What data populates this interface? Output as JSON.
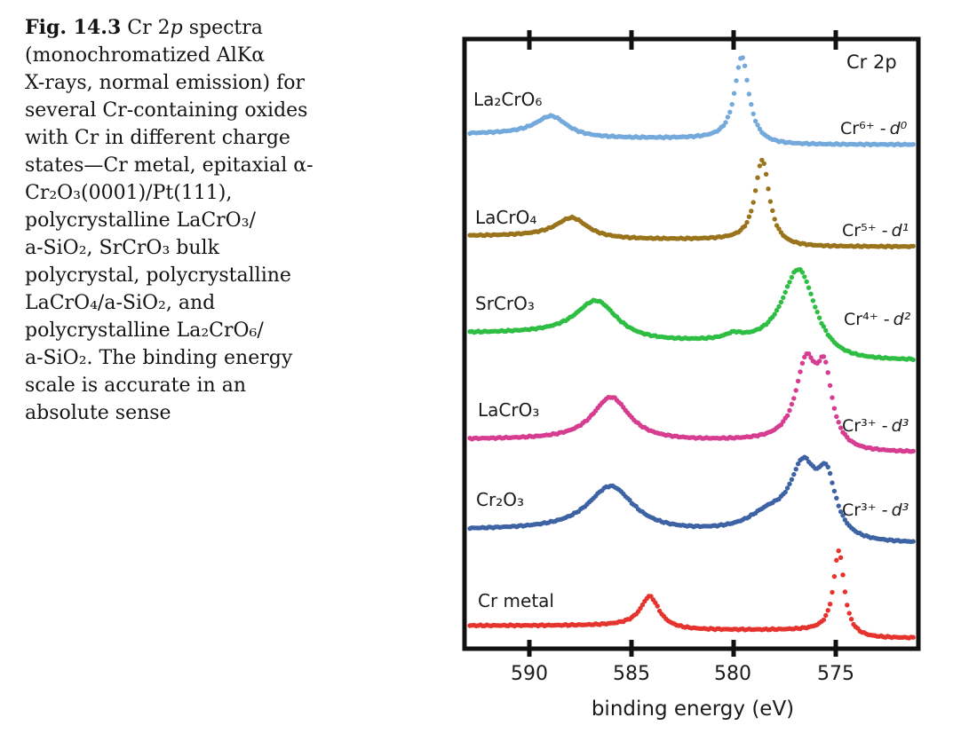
{
  "figure_caption": {
    "lines": [
      [
        {
          "t": "Fig. 14.3",
          "b": true
        },
        {
          "t": "  Cr 2"
        },
        {
          "t": "p",
          "i": true
        },
        {
          "t": " spectra"
        }
      ],
      [
        {
          "t": "(monochromatized AlKα"
        }
      ],
      [
        {
          "t": "X-rays, normal emission) for"
        }
      ],
      [
        {
          "t": "several Cr-containing oxides"
        }
      ],
      [
        {
          "t": "with Cr in different charge"
        }
      ],
      [
        {
          "t": "states—Cr metal, epitaxial α-"
        }
      ],
      [
        {
          "t": "Cr₂O₃(0001)/Pt(111),"
        }
      ],
      [
        {
          "t": "polycrystalline LaCrO₃/"
        }
      ],
      [
        {
          "t": "a-SiO₂, SrCrO₃ bulk"
        }
      ],
      [
        {
          "t": "polycrystal, polycrystalline"
        }
      ],
      [
        {
          "t": "LaCrO₄/a-SiO₂, and"
        }
      ],
      [
        {
          "t": "polycrystalline La₂CrO₆/"
        }
      ],
      [
        {
          "t": "a-SiO₂. The binding energy"
        }
      ],
      [
        {
          "t": "scale is accurate in an"
        }
      ],
      [
        {
          "t": "absolute sense"
        }
      ]
    ]
  },
  "chart_data": {
    "type": "line",
    "title": "Cr 2p",
    "xlabel": "binding energy (eV)",
    "x_axis": {
      "ticks": [
        590,
        585,
        580,
        575
      ],
      "tick_labels": [
        "590",
        "585",
        "580",
        "575"
      ],
      "unit": "eV",
      "range_ev": [
        593.2,
        570.9
      ],
      "direction": "binding energy decreases to the right"
    },
    "y_axis": {
      "note": "intensity, arbitrary units, curves vertically offset; no y label shown"
    },
    "style": {
      "dotted_curves": true,
      "frame_color": "#111111"
    },
    "series": [
      {
        "name": "La2CrO6",
        "label": "La₂CrO₆",
        "charge_label": "Cr⁶⁺ -",
        "d_label": "d⁰",
        "color": "#74A9DB",
        "peaks_ev": {
          "cr2p12": 588.9,
          "cr2p32": 579.6
        },
        "render": {
          "baseline_y": 163,
          "peaks": [
            {
              "c": 588.9,
              "a": 22,
              "w": 0.95,
              "m": 1
            },
            {
              "c": 579.6,
              "a": 94,
              "w": 0.45,
              "m": 1.15
            }
          ],
          "steps": [
            {
              "c": 588.6,
              "s": 5,
              "w": 0.5
            },
            {
              "c": 579.2,
              "s": 7,
              "w": 0.45
            }
          ]
        }
      },
      {
        "name": "LaCrO4",
        "label": "LaCrO₄",
        "charge_label": "Cr⁵⁺ -",
        "d_label": "d¹",
        "color": "#9A741C",
        "peaks_ev": {
          "cr2p12": 587.9,
          "cr2p32": 578.6
        },
        "render": {
          "baseline_y": 278,
          "peaks": [
            {
              "c": 587.9,
              "a": 22,
              "w": 0.95,
              "m": 1
            },
            {
              "c": 578.6,
              "a": 92,
              "w": 0.45,
              "m": 1.15
            }
          ],
          "steps": [
            {
              "c": 587.6,
              "s": 4,
              "w": 0.5
            },
            {
              "c": 578.2,
              "s": 8,
              "w": 0.45
            }
          ]
        }
      },
      {
        "name": "SrCrO3",
        "label": "SrCrO₃",
        "charge_label": "Cr⁴⁺ -",
        "d_label": "d²",
        "color": "#2EBE44",
        "peaks_ev": {
          "cr2p12": 586.7,
          "cr2p32": 576.8
        },
        "render": {
          "baseline_y": 406,
          "peaks": [
            {
              "c": 586.7,
              "a": 40,
              "w": 1.35,
              "m": 1.2
            },
            {
              "c": 580.0,
              "a": 6,
              "w": 0.5,
              "m": 1
            },
            {
              "c": 576.8,
              "a": 85,
              "w": 1.1,
              "m": 1.3
            }
          ],
          "steps": [
            {
              "c": 586.4,
              "s": 10,
              "w": 0.8
            },
            {
              "c": 576.0,
              "s": 21,
              "w": 0.55
            }
          ]
        }
      },
      {
        "name": "LaCrO3",
        "label": "LaCrO₃",
        "charge_label": "Cr³⁺ -",
        "d_label": "d³",
        "color": "#D63C90",
        "peaks_ev": {
          "cr2p12": 586.0,
          "cr2p32": 576.4,
          "cr2p32_shoulder": 575.6
        },
        "render": {
          "baseline_y": 510,
          "peaks": [
            {
              "c": 586.0,
              "a": 48,
              "w": 1.15,
              "m": 1.1
            },
            {
              "c": 576.45,
              "a": 86,
              "w": 0.65,
              "m": 1.1
            },
            {
              "c": 575.55,
              "a": 70,
              "w": 0.45,
              "m": 1.1
            }
          ],
          "steps": [
            {
              "c": 585.7,
              "s": 2,
              "w": 0.8
            },
            {
              "c": 575.1,
              "s": 13,
              "w": 0.4
            }
          ]
        }
      },
      {
        "name": "Cr2O3",
        "label": "Cr₂O₃",
        "charge_label": "Cr³⁺ -",
        "d_label": "d³",
        "color": "#3E63A5",
        "peaks_ev": {
          "cr2p12": 586.0,
          "cr2p32": 576.6,
          "cr2p32_shoulder": 575.5
        },
        "render": {
          "baseline_y": 613,
          "peaks": [
            {
              "c": 586.0,
              "a": 50,
              "w": 1.4,
              "m": 1.05
            },
            {
              "c": 578.3,
              "a": 18,
              "w": 1.2,
              "m": 1
            },
            {
              "c": 576.6,
              "a": 70,
              "w": 0.8,
              "m": 1.05
            },
            {
              "c": 575.45,
              "a": 55,
              "w": 0.55,
              "m": 1.1
            }
          ],
          "steps": [
            {
              "c": 585.7,
              "s": 4,
              "w": 0.8
            },
            {
              "c": 574.9,
              "s": 12,
              "w": 0.4
            }
          ]
        }
      },
      {
        "name": "Cr metal",
        "label": "Cr metal",
        "charge_label": null,
        "d_label": null,
        "color": "#E6332D",
        "peaks_ev": {
          "cr2p12": 584.1,
          "cr2p32": 574.9
        },
        "render": {
          "baseline_y": 719,
          "peaks": [
            {
              "c": 584.1,
              "a": 35,
              "w": 0.55,
              "m": 1
            },
            {
              "c": 574.85,
              "a": 92,
              "w": 0.33,
              "m": 1.1
            }
          ],
          "steps": [
            {
              "c": 583.9,
              "s": 5,
              "w": 0.5
            },
            {
              "c": 574.5,
              "s": 9,
              "w": 0.4
            }
          ]
        }
      }
    ]
  }
}
